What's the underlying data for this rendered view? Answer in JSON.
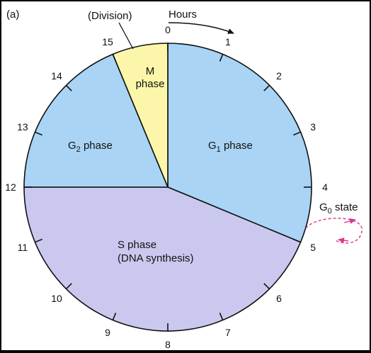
{
  "panel_label": "(a)",
  "division_label": "(Division)",
  "hours_label": "Hours",
  "hours": [
    "0",
    "1",
    "2",
    "3",
    "4",
    "5",
    "6",
    "7",
    "8",
    "9",
    "10",
    "11",
    "12",
    "13",
    "14",
    "15"
  ],
  "total_hours": 16,
  "phases": [
    {
      "id": "g1",
      "start_hour": 0,
      "end_hour": 5,
      "color": "#a9d4f5",
      "lines": [
        "G",
        "1",
        " phase"
      ]
    },
    {
      "id": "s",
      "start_hour": 5,
      "end_hour": 12,
      "color": "#cbc8f0",
      "lines": [
        "S phase",
        "(DNA synthesis)"
      ]
    },
    {
      "id": "g2",
      "start_hour": 12,
      "end_hour": 15,
      "color": "#a9d4f5",
      "lines": [
        "G",
        "2",
        " phase"
      ]
    },
    {
      "id": "m",
      "start_hour": 15,
      "end_hour": 16,
      "color": "#fbf6a9",
      "lines": [
        "M",
        "phase"
      ]
    }
  ],
  "g0_label": {
    "main": "G",
    "sub": "0",
    "rest": " state"
  },
  "colors": {
    "outline": "#111111",
    "g0_arrow": "#e0338e"
  }
}
